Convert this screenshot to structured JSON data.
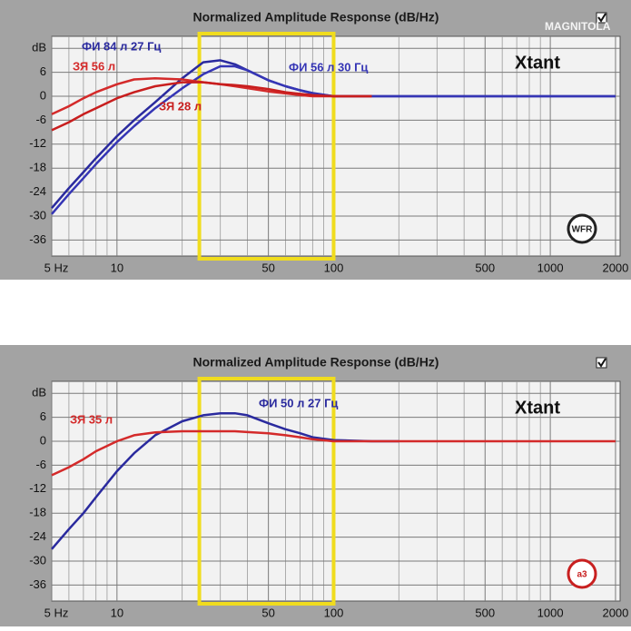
{
  "chart_data": [
    {
      "type": "line",
      "title": "Normalized Amplitude Response (dB/Hz)",
      "brand": "Xtant",
      "logo": "WFR",
      "watermark": "MAGNITOLA",
      "log_x": true,
      "grid": true,
      "background": "#a3a3a3",
      "plot_background": "#f2f2f2",
      "highlight_band": [
        24,
        100
      ],
      "highlight_color": "#f0dc1e",
      "xlim": [
        5,
        2100
      ],
      "ylim": [
        -40,
        15
      ],
      "xticks": [
        {
          "value": 5,
          "label": "5 Hz"
        },
        10,
        50,
        100,
        500,
        1000,
        2000
      ],
      "xgrid": [
        6,
        7,
        8,
        9,
        20,
        30,
        40,
        60,
        70,
        80,
        90,
        200,
        300,
        400,
        600,
        700,
        800,
        900
      ],
      "yticks": [
        {
          "value": 12,
          "label": "dB"
        },
        6,
        0,
        -6,
        -12,
        -18,
        -24,
        -30,
        -36
      ],
      "x": [
        5,
        6,
        7,
        8,
        10,
        12,
        15,
        20,
        25,
        30,
        35,
        40,
        50,
        60,
        70,
        80,
        100,
        150,
        200,
        500,
        1000,
        2000
      ],
      "series": [
        {
          "name": "ФИ 84 л 27 Гц",
          "color": "#2a2a9e",
          "values": [
            -28,
            -23,
            -19,
            -15.5,
            -10,
            -6,
            -1.5,
            4.5,
            8.5,
            9,
            8,
            6.5,
            4,
            2.5,
            1.5,
            0.8,
            0,
            0,
            0,
            0,
            0,
            0
          ]
        },
        {
          "name": "ФИ 56 л 30 Гц",
          "color": "#3535b5",
          "values": [
            -29.5,
            -24.5,
            -20.5,
            -17,
            -11.5,
            -7.5,
            -3,
            2,
            5.5,
            7.5,
            7.5,
            6.5,
            4,
            2.5,
            1.5,
            0.7,
            0,
            0,
            0,
            0,
            0,
            0
          ]
        },
        {
          "name": "ЗЯ 56 л",
          "color": "#d42a2a",
          "values": [
            -4.5,
            -2.5,
            -0.5,
            1,
            3,
            4.2,
            4.5,
            4.2,
            3.5,
            3,
            2.5,
            2,
            1.2,
            0.7,
            0.3,
            0,
            0,
            0,
            null,
            null,
            null,
            null
          ]
        },
        {
          "name": "ЗЯ 28 л",
          "color": "#c81e1e",
          "values": [
            -8.5,
            -6.5,
            -4.5,
            -3,
            -0.5,
            1,
            2.5,
            3.5,
            3.5,
            3,
            2.8,
            2.5,
            1.8,
            1,
            0.6,
            0.3,
            0,
            0,
            null,
            null,
            null,
            null
          ]
        }
      ]
    },
    {
      "type": "line",
      "title": "Normalized Amplitude Response (dB/Hz)",
      "brand": "Xtant",
      "logo": "a3",
      "log_x": true,
      "grid": true,
      "background": "#a3a3a3",
      "plot_background": "#f2f2f2",
      "highlight_band": [
        24,
        100
      ],
      "highlight_color": "#f0dc1e",
      "xlim": [
        5,
        2100
      ],
      "ylim": [
        -40,
        15
      ],
      "xticks": [
        {
          "value": 5,
          "label": "5 Hz"
        },
        10,
        50,
        100,
        500,
        1000,
        2000
      ],
      "xgrid": [
        6,
        7,
        8,
        9,
        20,
        30,
        40,
        60,
        70,
        80,
        90,
        200,
        300,
        400,
        600,
        700,
        800,
        900
      ],
      "yticks": [
        {
          "value": 12,
          "label": "dB"
        },
        6,
        0,
        -6,
        -12,
        -18,
        -24,
        -30,
        -36
      ],
      "x": [
        5,
        6,
        7,
        8,
        10,
        12,
        15,
        20,
        25,
        30,
        35,
        40,
        50,
        60,
        70,
        80,
        100,
        150,
        200,
        500,
        1000,
        2000
      ],
      "series": [
        {
          "name": "ФИ 50 л 27 Гц",
          "color": "#2a2a9e",
          "values": [
            -27,
            -22,
            -18,
            -14,
            -7.5,
            -3,
            1.5,
            5,
            6.5,
            7,
            7,
            6.5,
            4.5,
            3,
            2,
            1,
            0.3,
            0,
            0,
            null,
            null,
            null
          ]
        },
        {
          "name": "ЗЯ 35 л",
          "color": "#d42a2a",
          "values": [
            -8.5,
            -6.5,
            -4.5,
            -2.5,
            0,
            1.5,
            2.2,
            2.5,
            2.5,
            2.5,
            2.5,
            2.3,
            2,
            1.5,
            1,
            0.5,
            0,
            0,
            0,
            0,
            0,
            0
          ]
        }
      ]
    }
  ]
}
